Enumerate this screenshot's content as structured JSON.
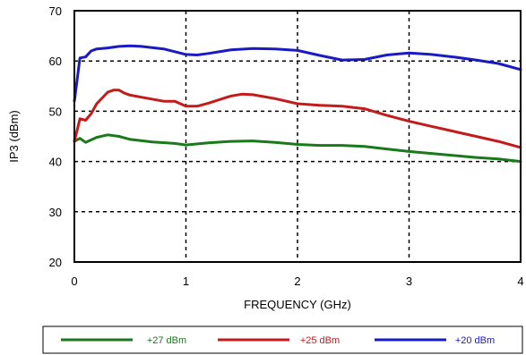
{
  "chart_data": {
    "type": "line",
    "title": "",
    "xlabel": "FREQUENCY (GHz)",
    "ylabel": "IP3 (dBm)",
    "xlim": [
      0,
      4
    ],
    "ylim": [
      20,
      70
    ],
    "x_ticks": [
      0,
      1,
      2,
      3,
      4
    ],
    "y_ticks": [
      20,
      30,
      40,
      50,
      60,
      70
    ],
    "grid": "dashed",
    "legend_position": "bottom",
    "series": [
      {
        "name": "+27 dBm",
        "color": "#1a7a1a",
        "x": [
          0.0,
          0.05,
          0.1,
          0.2,
          0.3,
          0.4,
          0.5,
          0.7,
          0.9,
          1.0,
          1.2,
          1.4,
          1.6,
          1.8,
          2.0,
          2.2,
          2.4,
          2.6,
          2.8,
          3.0,
          3.2,
          3.4,
          3.6,
          3.8,
          4.0
        ],
        "values": [
          44.0,
          44.6,
          43.8,
          44.8,
          45.3,
          45.0,
          44.4,
          43.9,
          43.6,
          43.3,
          43.7,
          44.0,
          44.1,
          43.8,
          43.4,
          43.2,
          43.2,
          43.0,
          42.5,
          42.0,
          41.6,
          41.2,
          40.8,
          40.5,
          40.0
        ]
      },
      {
        "name": "+25 dBm",
        "color": "#c41a1a",
        "x": [
          0.0,
          0.05,
          0.1,
          0.15,
          0.2,
          0.3,
          0.35,
          0.4,
          0.45,
          0.5,
          0.6,
          0.8,
          0.9,
          0.95,
          1.0,
          1.1,
          1.2,
          1.4,
          1.5,
          1.6,
          1.8,
          2.0,
          2.2,
          2.4,
          2.6,
          2.8,
          3.0,
          3.2,
          3.4,
          3.6,
          3.8,
          4.0
        ],
        "values": [
          44.0,
          48.5,
          48.2,
          49.5,
          51.5,
          53.8,
          54.2,
          54.2,
          53.6,
          53.2,
          52.8,
          52.0,
          52.0,
          51.5,
          51.0,
          51.0,
          51.6,
          53.0,
          53.4,
          53.3,
          52.5,
          51.5,
          51.2,
          51.0,
          50.5,
          49.2,
          48.0,
          47.0,
          46.0,
          45.0,
          44.0,
          42.8
        ]
      },
      {
        "name": "+20 dBm",
        "color": "#1a1ac4",
        "x": [
          0.0,
          0.05,
          0.1,
          0.15,
          0.2,
          0.3,
          0.4,
          0.5,
          0.6,
          0.8,
          1.0,
          1.1,
          1.2,
          1.4,
          1.6,
          1.8,
          2.0,
          2.2,
          2.4,
          2.6,
          2.8,
          3.0,
          3.2,
          3.4,
          3.6,
          3.8,
          4.0
        ],
        "values": [
          52.0,
          60.6,
          60.8,
          62.0,
          62.4,
          62.6,
          62.9,
          63.0,
          62.9,
          62.4,
          61.3,
          61.2,
          61.5,
          62.2,
          62.5,
          62.4,
          62.1,
          61.1,
          60.2,
          60.3,
          61.2,
          61.6,
          61.3,
          60.8,
          60.2,
          59.5,
          58.3
        ]
      }
    ]
  }
}
